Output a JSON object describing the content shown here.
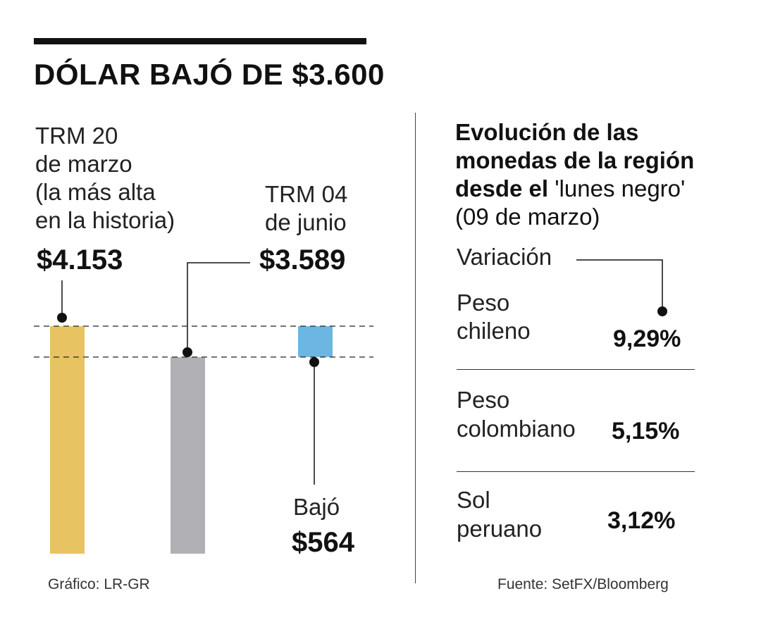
{
  "title": "DÓLAR BAJÓ DE $3.600",
  "left_panel": {
    "label_high": [
      "TRM 20",
      "de marzo",
      "(la más alta",
      "en la historia)"
    ],
    "value_high": "$4.153",
    "label_current": [
      "TRM 04",
      "de junio"
    ],
    "value_current": "$3.589",
    "drop_label": "Bajó",
    "drop_value": "$564"
  },
  "right_panel": {
    "title_bold": [
      "Evolución de las",
      "monedas de la región",
      "desde el"
    ],
    "title_quote": "'lunes negro'",
    "title_date": "(09 de marzo)",
    "variation_label": "Variación",
    "rows": [
      {
        "name": [
          "Peso",
          "chileno"
        ],
        "value": "9,29%"
      },
      {
        "name": [
          "Peso",
          "colombiano"
        ],
        "value": "5,15%"
      },
      {
        "name": [
          "Sol",
          "peruano"
        ],
        "value": "3,12%"
      }
    ]
  },
  "footer": {
    "credit": "Gráfico: LR-GR",
    "source": "Fuente: SetFX/Bloomberg"
  },
  "colors": {
    "bar_high": "#E8C362",
    "bar_current": "#B1B0B5",
    "bar_drop": "#6CB6E3",
    "ink": "#111111"
  },
  "chart_data": {
    "type": "bar",
    "title": "DÓLAR BAJÓ DE $3.600",
    "categories": [
      "TRM 20 de marzo",
      "TRM 04 de junio",
      "Bajó"
    ],
    "values": [
      4153,
      3589,
      564
    ],
    "units": "COP per USD",
    "baseline": 0,
    "ylim": [
      0,
      4300
    ],
    "grid": false,
    "note": "Third bar is a floating segment from 3589 to 4153 representing the drop of 564",
    "region_variation": {
      "categories": [
        "Peso chileno",
        "Peso colombiano",
        "Sol peruano"
      ],
      "values": [
        9.29,
        5.15,
        3.12
      ],
      "unit": "%"
    }
  }
}
